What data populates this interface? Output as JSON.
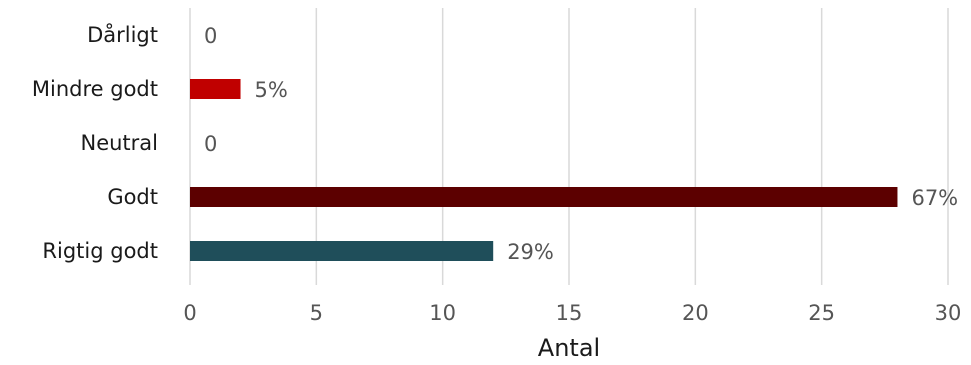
{
  "chart_data": {
    "type": "bar",
    "orientation": "horizontal",
    "categories": [
      "Dårligt",
      "Mindre godt",
      "Neutral",
      "Godt",
      "Rigtig godt"
    ],
    "values": [
      0,
      2,
      0,
      28,
      12
    ],
    "data_labels": [
      "0",
      "5%",
      "0",
      "67%",
      "29%"
    ],
    "colors": [
      "#c00000",
      "#c00000",
      "#5c0000",
      "#5c0000",
      "#1f4e5a"
    ],
    "xlabel": "Antal",
    "ylabel": "",
    "xlim": [
      0,
      30
    ],
    "x_ticks": [
      0,
      5,
      10,
      15,
      20,
      25,
      30
    ],
    "grid": "vertical",
    "legend": "none"
  }
}
